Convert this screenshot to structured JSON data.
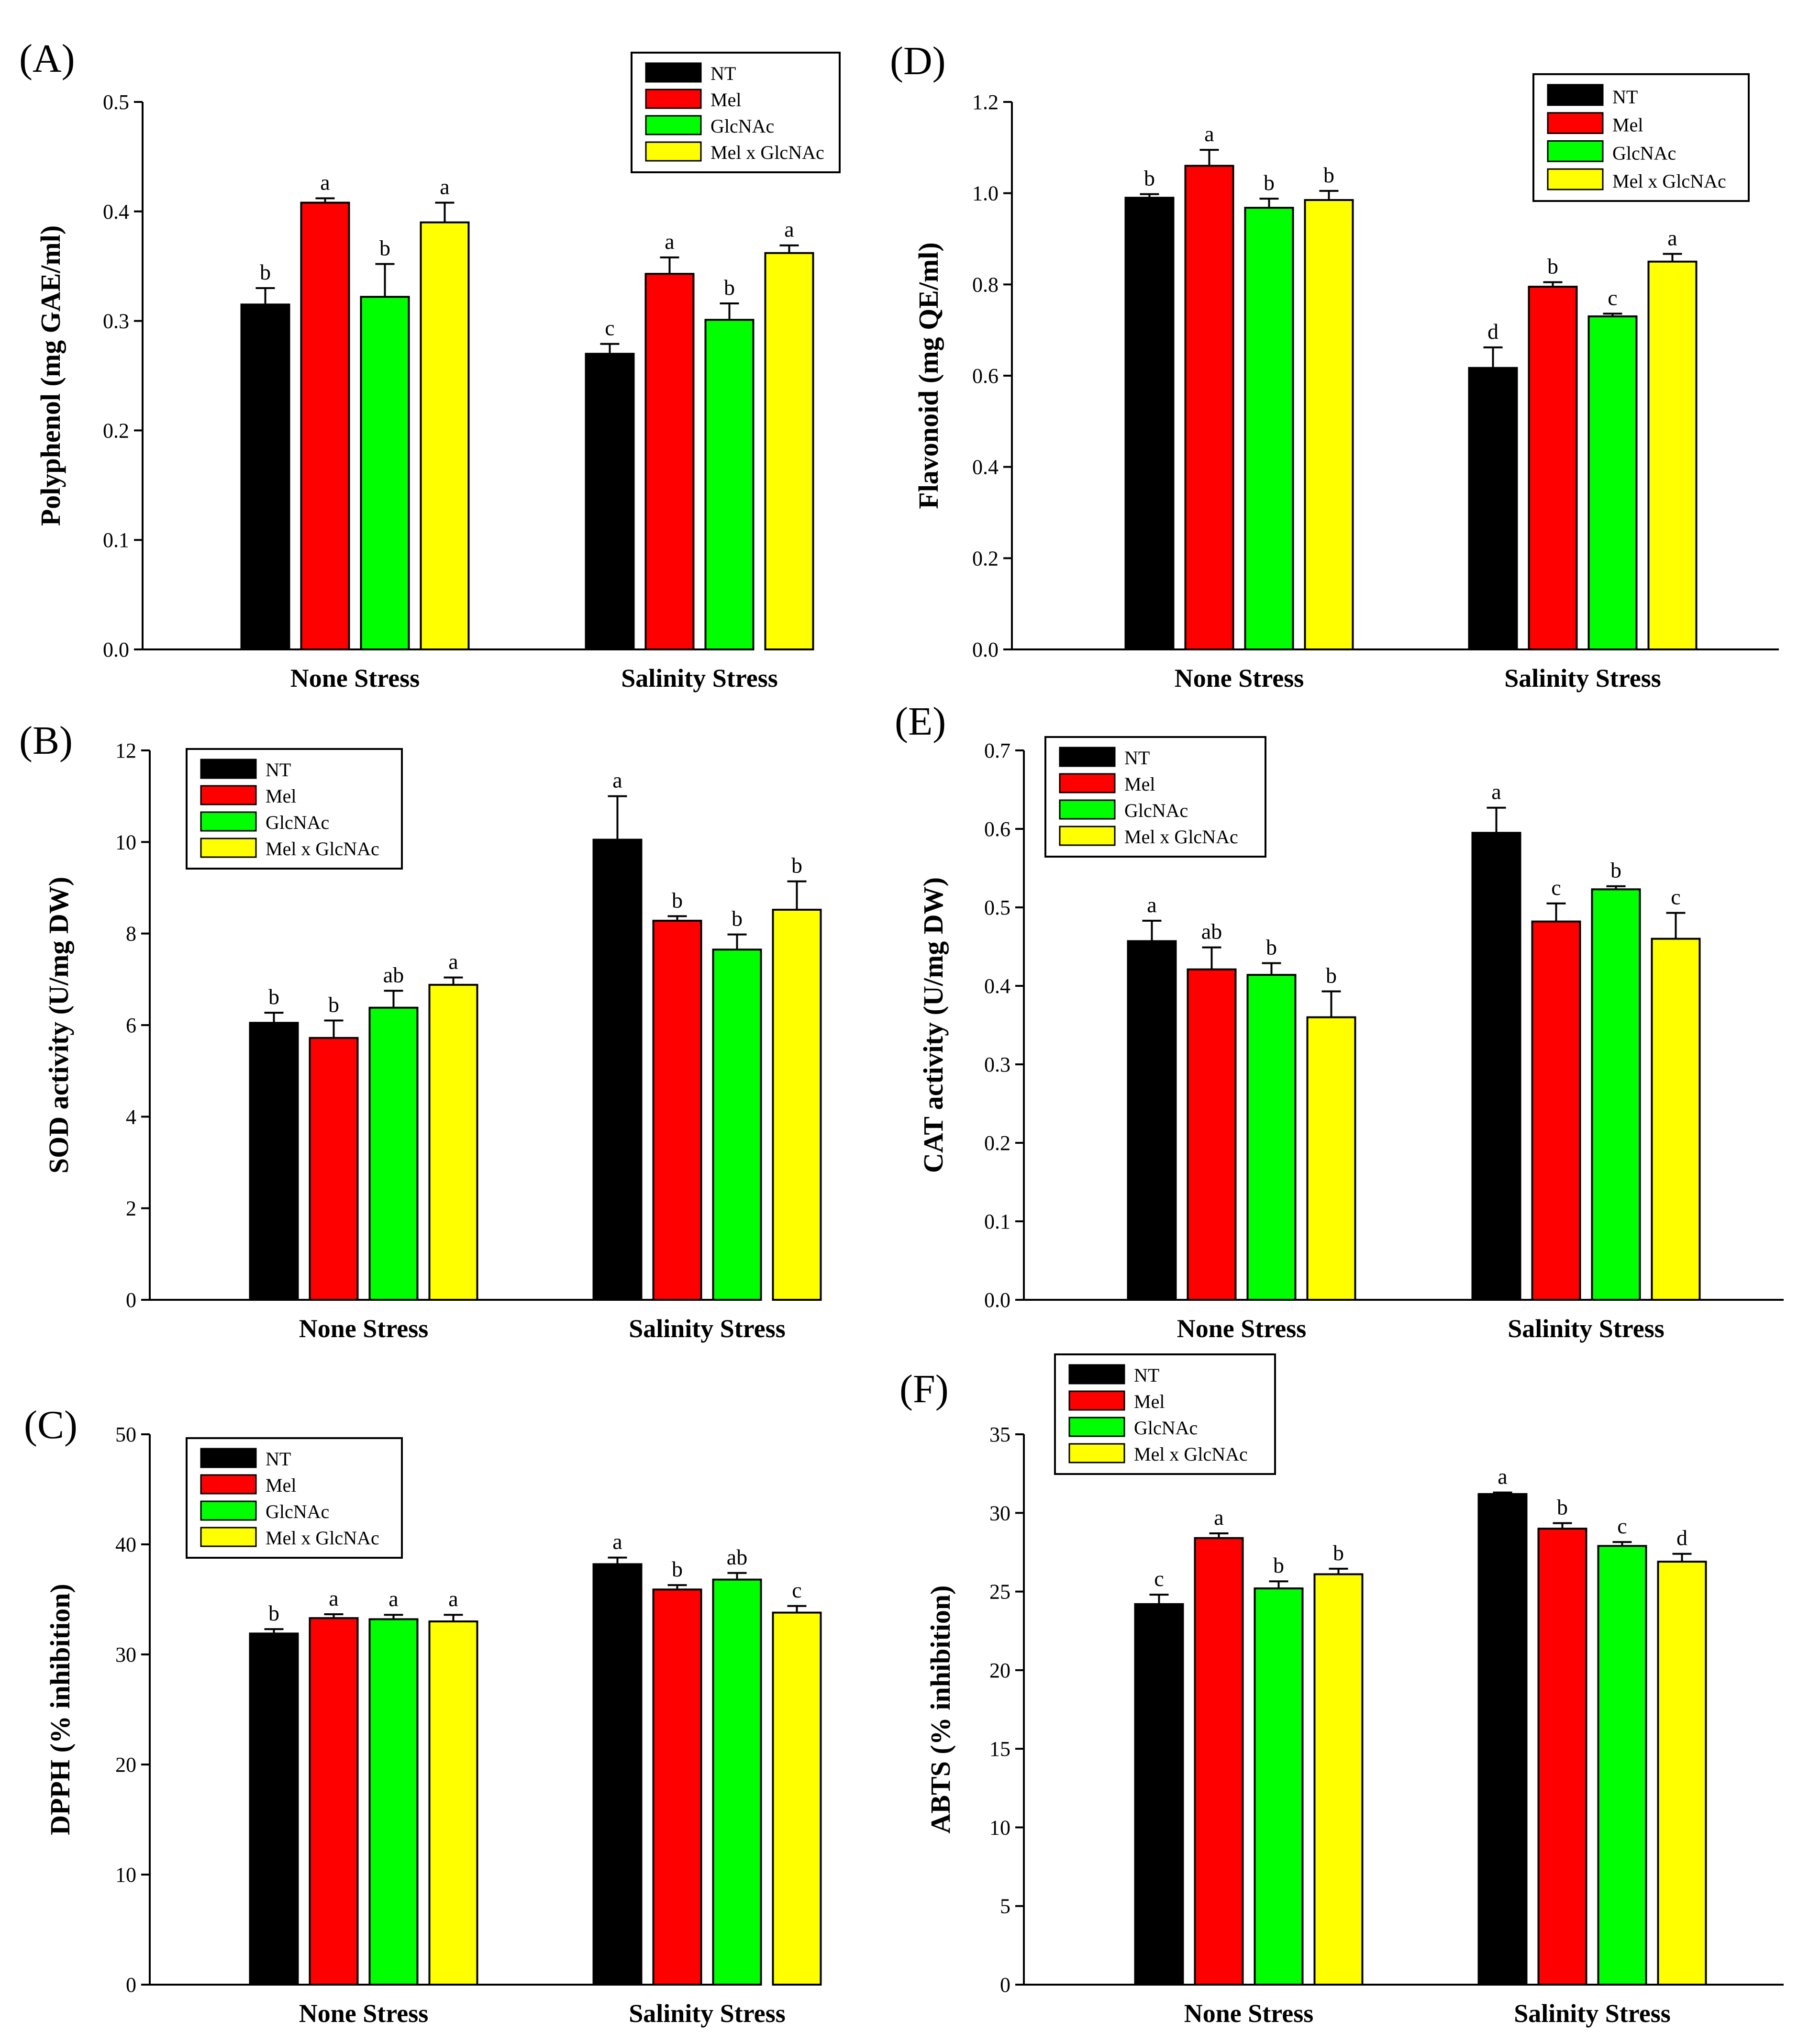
{
  "series_colors": {
    "NT": "#000000",
    "Mel": "#ff0000",
    "GlcNAc": "#00ff00",
    "Mel x GlcNAc": "#ffff00"
  },
  "chart_data": [
    {
      "panel": "(A)",
      "type": "bar",
      "ylabel": "Polyphenol (mg GAE/ml)",
      "ylim": [
        0,
        0.5
      ],
      "yticks": [
        "0.0",
        "0.1",
        "0.2",
        "0.3",
        "0.4",
        "0.5"
      ],
      "categories": [
        "None Stress",
        "Salinity Stress"
      ],
      "legend": "top-right",
      "series": [
        {
          "name": "NT",
          "values": [
            0.315,
            0.27
          ],
          "errors": [
            0.015,
            0.009
          ],
          "letters": [
            "b",
            "c"
          ]
        },
        {
          "name": "Mel",
          "values": [
            0.408,
            0.343
          ],
          "errors": [
            0.004,
            0.015
          ],
          "letters": [
            "a",
            "a"
          ]
        },
        {
          "name": "GlcNAc",
          "values": [
            0.322,
            0.301
          ],
          "errors": [
            0.03,
            0.015
          ],
          "letters": [
            "b",
            "b"
          ]
        },
        {
          "name": "Mel x GlcNAc",
          "values": [
            0.39,
            0.362
          ],
          "errors": [
            0.018,
            0.007
          ],
          "letters": [
            "a",
            "a"
          ]
        }
      ]
    },
    {
      "panel": "(B)",
      "type": "bar",
      "ylabel": "SOD activity (U/mg DW)",
      "ylim": [
        0,
        12
      ],
      "yticks": [
        "0",
        "2",
        "4",
        "6",
        "8",
        "10",
        "12"
      ],
      "categories": [
        "None Stress",
        "Salinity Stress"
      ],
      "legend": "top-left",
      "series": [
        {
          "name": "NT",
          "values": [
            6.05,
            10.05
          ],
          "errors": [
            0.22,
            0.95
          ],
          "letters": [
            "b",
            "a"
          ]
        },
        {
          "name": "Mel",
          "values": [
            5.72,
            8.28
          ],
          "errors": [
            0.38,
            0.1
          ],
          "letters": [
            "b",
            "b"
          ]
        },
        {
          "name": "GlcNAc",
          "values": [
            6.38,
            7.65
          ],
          "errors": [
            0.37,
            0.33
          ],
          "letters": [
            "ab",
            "b"
          ]
        },
        {
          "name": "Mel x GlcNAc",
          "values": [
            6.88,
            8.52
          ],
          "errors": [
            0.16,
            0.62
          ],
          "letters": [
            "a",
            "b"
          ]
        }
      ]
    },
    {
      "panel": "(C)",
      "type": "bar",
      "ylabel": "DPPH (% inhibition)",
      "ylim": [
        0,
        50
      ],
      "yticks": [
        "0",
        "10",
        "20",
        "30",
        "40",
        "50"
      ],
      "categories": [
        "None Stress",
        "Salinity Stress"
      ],
      "legend": "top-left",
      "series": [
        {
          "name": "NT",
          "values": [
            31.9,
            38.2
          ],
          "errors": [
            0.4,
            0.6
          ],
          "letters": [
            "b",
            "a"
          ]
        },
        {
          "name": "Mel",
          "values": [
            33.3,
            35.9
          ],
          "errors": [
            0.35,
            0.4
          ],
          "letters": [
            "a",
            "b"
          ]
        },
        {
          "name": "GlcNAc",
          "values": [
            33.2,
            36.8
          ],
          "errors": [
            0.4,
            0.6
          ],
          "letters": [
            "a",
            "ab"
          ]
        },
        {
          "name": "Mel x GlcNAc",
          "values": [
            33.0,
            33.8
          ],
          "errors": [
            0.6,
            0.6
          ],
          "letters": [
            "a",
            "c"
          ]
        }
      ]
    },
    {
      "panel": "(D)",
      "type": "bar",
      "ylabel": "Flavonoid (mg QE/ml)",
      "ylim": [
        0,
        1.2
      ],
      "yticks": [
        "0.0",
        "0.2",
        "0.4",
        "0.6",
        "0.8",
        "1.0",
        "1.2"
      ],
      "categories": [
        "None Stress",
        "Salinity Stress"
      ],
      "legend": "top-right",
      "series": [
        {
          "name": "NT",
          "values": [
            0.99,
            0.617
          ],
          "errors": [
            0.008,
            0.045
          ],
          "letters": [
            "b",
            "d"
          ]
        },
        {
          "name": "Mel",
          "values": [
            1.06,
            0.795
          ],
          "errors": [
            0.035,
            0.01
          ],
          "letters": [
            "a",
            "b"
          ]
        },
        {
          "name": "GlcNAc",
          "values": [
            0.968,
            0.73
          ],
          "errors": [
            0.02,
            0.006
          ],
          "letters": [
            "b",
            "c"
          ]
        },
        {
          "name": "Mel x GlcNAc",
          "values": [
            0.985,
            0.85
          ],
          "errors": [
            0.02,
            0.017
          ],
          "letters": [
            "b",
            "a"
          ]
        }
      ]
    },
    {
      "panel": "(E)",
      "type": "bar",
      "ylabel": "CAT activity (U/mg DW)",
      "ylim": [
        0,
        0.7
      ],
      "yticks": [
        "0.0",
        "0.1",
        "0.2",
        "0.3",
        "0.4",
        "0.5",
        "0.6",
        "0.7"
      ],
      "categories": [
        "None Stress",
        "Salinity Stress"
      ],
      "legend": "top-left",
      "series": [
        {
          "name": "NT",
          "values": [
            0.457,
            0.595
          ],
          "errors": [
            0.026,
            0.032
          ],
          "letters": [
            "a",
            "a"
          ]
        },
        {
          "name": "Mel",
          "values": [
            0.421,
            0.482
          ],
          "errors": [
            0.028,
            0.023
          ],
          "letters": [
            "ab",
            "c"
          ]
        },
        {
          "name": "GlcNAc",
          "values": [
            0.414,
            0.523
          ],
          "errors": [
            0.015,
            0.004
          ],
          "letters": [
            "b",
            "b"
          ]
        },
        {
          "name": "Mel x GlcNAc",
          "values": [
            0.36,
            0.46
          ],
          "errors": [
            0.033,
            0.033
          ],
          "letters": [
            "b",
            "c"
          ]
        }
      ]
    },
    {
      "panel": "(F)",
      "type": "bar",
      "ylabel": "ABTS (% inhibition)",
      "ylim": [
        0,
        35
      ],
      "yticks": [
        "0",
        "5",
        "10",
        "15",
        "20",
        "25",
        "30",
        "35"
      ],
      "categories": [
        "None Stress",
        "Salinity Stress"
      ],
      "legend": "top-left",
      "series": [
        {
          "name": "NT",
          "values": [
            24.2,
            31.2
          ],
          "errors": [
            0.6,
            0.1
          ],
          "letters": [
            "c",
            "a"
          ]
        },
        {
          "name": "Mel",
          "values": [
            28.4,
            29.0
          ],
          "errors": [
            0.3,
            0.35
          ],
          "letters": [
            "a",
            "b"
          ]
        },
        {
          "name": "GlcNAc",
          "values": [
            25.2,
            27.9
          ],
          "errors": [
            0.45,
            0.25
          ],
          "letters": [
            "b",
            "c"
          ]
        },
        {
          "name": "Mel x GlcNAc",
          "values": [
            26.1,
            26.9
          ],
          "errors": [
            0.35,
            0.5
          ],
          "letters": [
            "b",
            "d"
          ]
        }
      ]
    }
  ]
}
